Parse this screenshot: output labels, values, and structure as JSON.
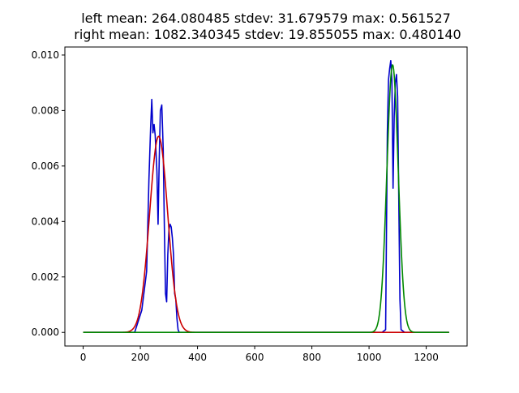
{
  "chart_data": {
    "type": "line",
    "title": [
      "left mean: 264.080485 stdev: 31.679579 max: 0.561527",
      "right mean: 1082.340345 stdev: 19.855055 max: 0.480140"
    ],
    "xlabel": "",
    "ylabel": "",
    "xlim": [
      -64,
      1343
    ],
    "ylim": [
      -0.00049,
      0.01029
    ],
    "x_ticks": [
      0,
      200,
      400,
      600,
      800,
      1000,
      1200
    ],
    "y_ticks": [
      0.0,
      0.002,
      0.004,
      0.006,
      0.008,
      0.01
    ],
    "y_tick_labels": [
      "0.000",
      "0.002",
      "0.004",
      "0.006",
      "0.008",
      "0.010"
    ],
    "grid": false,
    "legend": "none",
    "series": [
      {
        "color": "#0000cc",
        "kind": "histogram-density",
        "x": [
          0,
          180,
          205,
          222,
          230,
          236,
          240,
          244,
          248,
          252,
          258,
          262,
          266,
          270,
          275,
          280,
          284,
          288,
          292,
          296,
          300,
          304,
          308,
          312,
          316,
          320,
          324,
          328,
          332,
          336,
          345,
          1028,
          1045,
          1058,
          1064,
          1068,
          1072,
          1076,
          1080,
          1084,
          1088,
          1092,
          1096,
          1100,
          1104,
          1108,
          1112,
          1125,
          1280
        ],
        "y": [
          0.0,
          0.0,
          0.0008,
          0.0022,
          0.0055,
          0.0074,
          0.0084,
          0.0072,
          0.0075,
          0.0071,
          0.0058,
          0.0039,
          0.0062,
          0.008,
          0.0082,
          0.0066,
          0.0038,
          0.0014,
          0.0011,
          0.0028,
          0.0037,
          0.0039,
          0.0038,
          0.0034,
          0.0028,
          0.0014,
          0.0012,
          0.0005,
          0.0001,
          0.0,
          0.0,
          0.0,
          0.0,
          0.0001,
          0.0072,
          0.0091,
          0.0095,
          0.0098,
          0.0091,
          0.0052,
          0.0078,
          0.009,
          0.0093,
          0.0085,
          0.0048,
          0.0012,
          0.0001,
          0.0,
          0.0
        ]
      },
      {
        "color": "#cc0000",
        "kind": "gaussian",
        "mean": 264.080485,
        "stdev": 31.679579,
        "peak": 0.00707,
        "x_range": [
          0,
          1280
        ]
      },
      {
        "color": "#008800",
        "kind": "gaussian",
        "mean": 1082.340345,
        "stdev": 19.855055,
        "peak": 0.00965,
        "x_range": [
          0,
          1280
        ]
      }
    ]
  }
}
